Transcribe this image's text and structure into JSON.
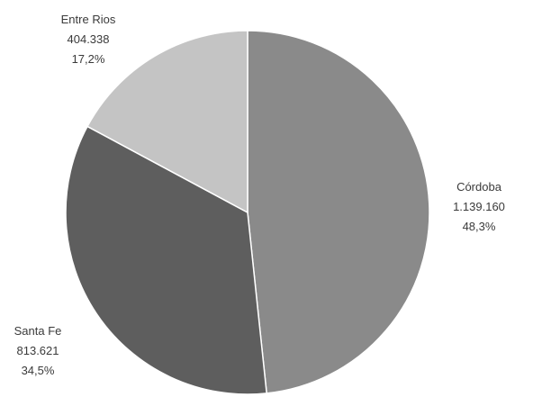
{
  "chart_data": {
    "type": "pie",
    "title": "",
    "slices": [
      {
        "label": "Córdoba",
        "value_text": "1.139.160",
        "value": 1139160,
        "percent_text": "48,3%",
        "percent": 48.3,
        "color": "#8a8a8a"
      },
      {
        "label": "Santa Fe",
        "value_text": "813.621",
        "value": 813621,
        "percent_text": "34,5%",
        "percent": 34.5,
        "color": "#5e5e5e"
      },
      {
        "label": "Entre Rios",
        "value_text": "404.338",
        "value": 404338,
        "percent_text": "17,2%",
        "percent": 17.2,
        "color": "#c4c4c4"
      }
    ],
    "start_angle_deg": 0,
    "direction": "clockwise",
    "legend": "none",
    "labels_position": "outside"
  }
}
